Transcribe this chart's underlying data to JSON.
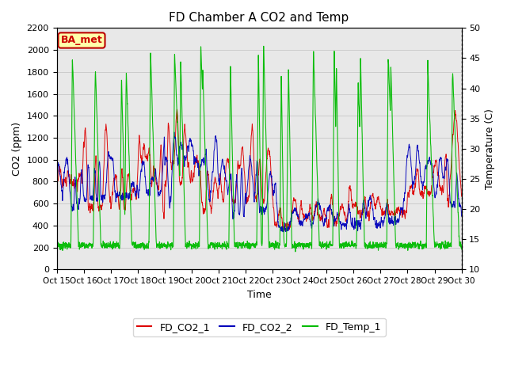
{
  "title": "FD Chamber A CO2 and Temp",
  "xlabel": "Time",
  "ylabel_left": "CO2 (ppm)",
  "ylabel_right": "Temperature (C)",
  "ylim_left": [
    0,
    2200
  ],
  "ylim_right": [
    10,
    50
  ],
  "yticks_left": [
    0,
    200,
    400,
    600,
    800,
    1000,
    1200,
    1400,
    1600,
    1800,
    2000,
    2200
  ],
  "yticks_right": [
    10,
    15,
    20,
    25,
    30,
    35,
    40,
    45,
    50
  ],
  "xtick_labels": [
    "Oct 15",
    "Oct 16",
    "Oct 17",
    "Oct 18",
    "Oct 19",
    "Oct 20",
    "Oct 21",
    "Oct 22",
    "Oct 23",
    "Oct 24",
    "Oct 25",
    "Oct 26",
    "Oct 27",
    "Oct 28",
    "Oct 29",
    "Oct 30"
  ],
  "legend_labels": [
    "FD_CO2_1",
    "FD_CO2_2",
    "FD_Temp_1"
  ],
  "line_colors": [
    "#dd0000",
    "#0000bb",
    "#00bb00"
  ],
  "annotation_text": "BA_met",
  "annotation_bg": "#ffffaa",
  "annotation_border": "#bb0000",
  "grid_color": "#cccccc",
  "bg_color": "#e8e8e8",
  "title_fontsize": 11,
  "fig_width": 6.4,
  "fig_height": 4.8,
  "dpi": 100
}
